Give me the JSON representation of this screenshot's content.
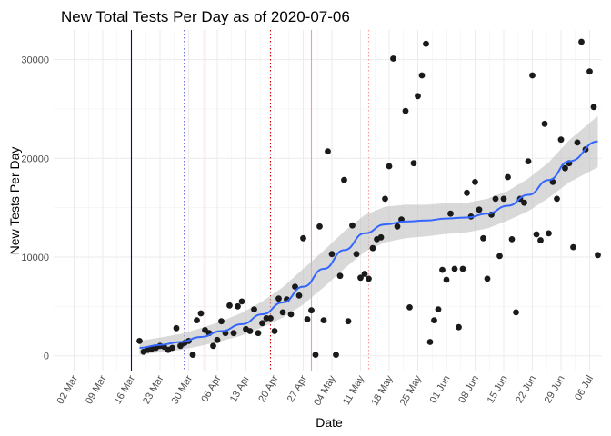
{
  "chart_data": {
    "type": "scatter",
    "title": "New Total Tests Per Day as of 2020-07-06",
    "xlabel": "Date",
    "ylabel": "New Tests Per Day",
    "x_scale": "date",
    "xlim": [
      "2020-02-26",
      "2020-07-09"
    ],
    "ylim": [
      -1500,
      33000
    ],
    "grid": true,
    "x_ticks": [
      {
        "date": "2020-03-02",
        "label": "02 Mar"
      },
      {
        "date": "2020-03-09",
        "label": "09 Mar"
      },
      {
        "date": "2020-03-16",
        "label": "16 Mar"
      },
      {
        "date": "2020-03-23",
        "label": "23 Mar"
      },
      {
        "date": "2020-03-30",
        "label": "30 Mar"
      },
      {
        "date": "2020-04-06",
        "label": "06 Apr"
      },
      {
        "date": "2020-04-13",
        "label": "13 Apr"
      },
      {
        "date": "2020-04-20",
        "label": "20 Apr"
      },
      {
        "date": "2020-04-27",
        "label": "27 Apr"
      },
      {
        "date": "2020-05-04",
        "label": "04 May"
      },
      {
        "date": "2020-05-11",
        "label": "11 May"
      },
      {
        "date": "2020-05-18",
        "label": "18 May"
      },
      {
        "date": "2020-05-25",
        "label": "25 May"
      },
      {
        "date": "2020-06-01",
        "label": "01 Jun"
      },
      {
        "date": "2020-06-08",
        "label": "08 Jun"
      },
      {
        "date": "2020-06-15",
        "label": "15 Jun"
      },
      {
        "date": "2020-06-22",
        "label": "22 Jun"
      },
      {
        "date": "2020-06-29",
        "label": "29 Jun"
      },
      {
        "date": "2020-07-06",
        "label": "06 Jul"
      }
    ],
    "y_ticks": [
      {
        "value": 0,
        "label": "0"
      },
      {
        "value": 10000,
        "label": "10000"
      },
      {
        "value": 20000,
        "label": "20000"
      },
      {
        "value": 30000,
        "label": "30000"
      }
    ],
    "vertical_lines": [
      {
        "date": "2020-03-16",
        "color": "#0000cc",
        "style": "solid"
      },
      {
        "date": "2020-03-29",
        "color": "#0000cc",
        "style": "dotted"
      },
      {
        "date": "2020-04-03",
        "color": "#cc0000",
        "style": "solid"
      },
      {
        "date": "2020-04-19",
        "color": "#cc0000",
        "style": "dotted"
      },
      {
        "date": "2020-04-29",
        "color": "#ff9999",
        "style": "solid"
      },
      {
        "date": "2020-05-13",
        "color": "#ff9999",
        "style": "dotted"
      }
    ],
    "point_color": "#1a1a1a",
    "smooth_color": "#3366ff",
    "ribbon_color": "#bfbfbf",
    "points": [
      [
        "2020-03-18",
        1500
      ],
      [
        "2020-03-19",
        400
      ],
      [
        "2020-03-20",
        600
      ],
      [
        "2020-03-21",
        700
      ],
      [
        "2020-03-22",
        800
      ],
      [
        "2020-03-23",
        1000
      ],
      [
        "2020-03-24",
        900
      ],
      [
        "2020-03-25",
        600
      ],
      [
        "2020-03-26",
        800
      ],
      [
        "2020-03-27",
        2800
      ],
      [
        "2020-03-28",
        1000
      ],
      [
        "2020-03-29",
        1300
      ],
      [
        "2020-03-30",
        1500
      ],
      [
        "2020-03-31",
        100
      ],
      [
        "2020-04-01",
        3600
      ],
      [
        "2020-04-02",
        4300
      ],
      [
        "2020-04-03",
        2600
      ],
      [
        "2020-04-04",
        2300
      ],
      [
        "2020-04-05",
        1000
      ],
      [
        "2020-04-06",
        1600
      ],
      [
        "2020-04-07",
        3500
      ],
      [
        "2020-04-08",
        2300
      ],
      [
        "2020-04-09",
        5100
      ],
      [
        "2020-04-10",
        2300
      ],
      [
        "2020-04-11",
        5000
      ],
      [
        "2020-04-12",
        5500
      ],
      [
        "2020-04-13",
        2700
      ],
      [
        "2020-04-14",
        2500
      ],
      [
        "2020-04-15",
        4700
      ],
      [
        "2020-04-16",
        2300
      ],
      [
        "2020-04-17",
        3300
      ],
      [
        "2020-04-18",
        3800
      ],
      [
        "2020-04-19",
        3800
      ],
      [
        "2020-04-20",
        2500
      ],
      [
        "2020-04-21",
        5800
      ],
      [
        "2020-04-22",
        4400
      ],
      [
        "2020-04-23",
        5700
      ],
      [
        "2020-04-24",
        4200
      ],
      [
        "2020-04-25",
        7000
      ],
      [
        "2020-04-26",
        6100
      ],
      [
        "2020-04-27",
        11900
      ],
      [
        "2020-04-28",
        3700
      ],
      [
        "2020-04-29",
        4600
      ],
      [
        "2020-04-30",
        100
      ],
      [
        "2020-05-01",
        13100
      ],
      [
        "2020-05-02",
        3600
      ],
      [
        "2020-05-03",
        20700
      ],
      [
        "2020-05-04",
        10300
      ],
      [
        "2020-05-05",
        100
      ],
      [
        "2020-05-06",
        8100
      ],
      [
        "2020-05-07",
        17800
      ],
      [
        "2020-05-08",
        3500
      ],
      [
        "2020-05-09",
        13200
      ],
      [
        "2020-05-10",
        10300
      ],
      [
        "2020-05-11",
        7900
      ],
      [
        "2020-05-12",
        8300
      ],
      [
        "2020-05-13",
        7800
      ],
      [
        "2020-05-14",
        10900
      ],
      [
        "2020-05-15",
        11800
      ],
      [
        "2020-05-16",
        12000
      ],
      [
        "2020-05-17",
        15900
      ],
      [
        "2020-05-18",
        19200
      ],
      [
        "2020-05-19",
        30100
      ],
      [
        "2020-05-20",
        13100
      ],
      [
        "2020-05-21",
        13800
      ],
      [
        "2020-05-22",
        24800
      ],
      [
        "2020-05-23",
        4900
      ],
      [
        "2020-05-24",
        19500
      ],
      [
        "2020-05-25",
        26300
      ],
      [
        "2020-05-26",
        28400
      ],
      [
        "2020-05-27",
        31600
      ],
      [
        "2020-05-28",
        1400
      ],
      [
        "2020-05-29",
        3600
      ],
      [
        "2020-05-30",
        4700
      ],
      [
        "2020-05-31",
        8700
      ],
      [
        "2020-06-01",
        7700
      ],
      [
        "2020-06-02",
        14400
      ],
      [
        "2020-06-03",
        8800
      ],
      [
        "2020-06-04",
        2900
      ],
      [
        "2020-06-05",
        8800
      ],
      [
        "2020-06-06",
        16500
      ],
      [
        "2020-06-07",
        14100
      ],
      [
        "2020-06-08",
        17600
      ],
      [
        "2020-06-09",
        14800
      ],
      [
        "2020-06-10",
        11900
      ],
      [
        "2020-06-11",
        7800
      ],
      [
        "2020-06-12",
        14300
      ],
      [
        "2020-06-13",
        15900
      ],
      [
        "2020-06-14",
        10100
      ],
      [
        "2020-06-15",
        15900
      ],
      [
        "2020-06-16",
        18100
      ],
      [
        "2020-06-17",
        11800
      ],
      [
        "2020-06-18",
        4400
      ],
      [
        "2020-06-19",
        15900
      ],
      [
        "2020-06-20",
        15500
      ],
      [
        "2020-06-21",
        19700
      ],
      [
        "2020-06-22",
        28400
      ],
      [
        "2020-06-23",
        12300
      ],
      [
        "2020-06-24",
        11700
      ],
      [
        "2020-06-25",
        23500
      ],
      [
        "2020-06-26",
        12400
      ],
      [
        "2020-06-27",
        17600
      ],
      [
        "2020-06-28",
        15900
      ],
      [
        "2020-06-29",
        21900
      ],
      [
        "2020-06-30",
        19000
      ],
      [
        "2020-07-01",
        19500
      ],
      [
        "2020-07-02",
        11000
      ],
      [
        "2020-07-03",
        21600
      ],
      [
        "2020-07-04",
        31800
      ],
      [
        "2020-07-05",
        20900
      ],
      [
        "2020-07-06",
        28800
      ],
      [
        "2020-07-07",
        25200
      ],
      [
        "2020-07-08",
        10200
      ]
    ],
    "smooth": [
      [
        "2020-03-18",
        800
      ],
      [
        "2020-03-23",
        1100
      ],
      [
        "2020-03-28",
        1400
      ],
      [
        "2020-04-02",
        1900
      ],
      [
        "2020-04-07",
        2500
      ],
      [
        "2020-04-12",
        3200
      ],
      [
        "2020-04-17",
        4200
      ],
      [
        "2020-04-22",
        5400
      ],
      [
        "2020-04-27",
        7000
      ],
      [
        "2020-05-02",
        8800
      ],
      [
        "2020-05-07",
        10700
      ],
      [
        "2020-05-12",
        12400
      ],
      [
        "2020-05-17",
        13300
      ],
      [
        "2020-05-22",
        13600
      ],
      [
        "2020-05-27",
        13700
      ],
      [
        "2020-06-01",
        13900
      ],
      [
        "2020-06-06",
        14000
      ],
      [
        "2020-06-11",
        14400
      ],
      [
        "2020-06-16",
        15200
      ],
      [
        "2020-06-21",
        16300
      ],
      [
        "2020-06-26",
        17800
      ],
      [
        "2020-07-01",
        19700
      ],
      [
        "2020-07-08",
        21700
      ]
    ],
    "ribbon_halfwidth": [
      [
        "2020-03-18",
        700
      ],
      [
        "2020-03-28",
        800
      ],
      [
        "2020-04-07",
        1000
      ],
      [
        "2020-04-17",
        1300
      ],
      [
        "2020-04-27",
        1800
      ],
      [
        "2020-05-07",
        1900
      ],
      [
        "2020-05-17",
        1800
      ],
      [
        "2020-05-27",
        1600
      ],
      [
        "2020-06-06",
        1500
      ],
      [
        "2020-06-16",
        1500
      ],
      [
        "2020-06-26",
        1800
      ],
      [
        "2020-07-08",
        2600
      ]
    ]
  }
}
